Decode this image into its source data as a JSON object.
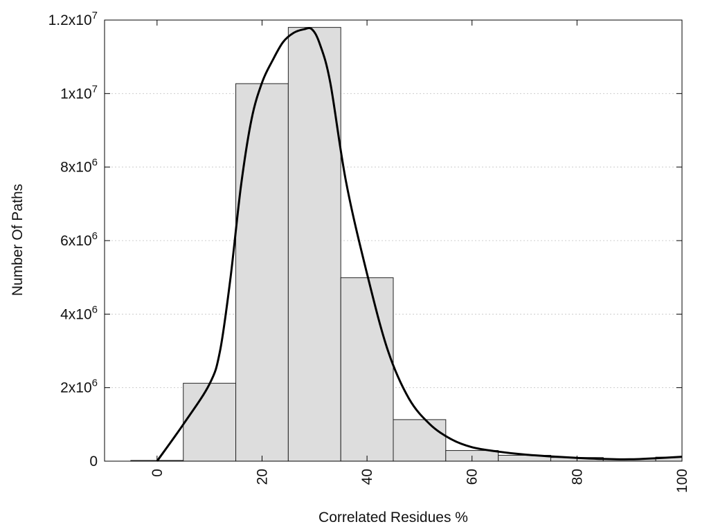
{
  "chart_data": {
    "type": "bar",
    "title": "",
    "xlabel": "Correlated Residues %",
    "ylabel": "Number Of Paths",
    "xlim": [
      -10,
      100
    ],
    "ylim": [
      0,
      12000000
    ],
    "x_ticks": [
      0,
      20,
      40,
      60,
      80,
      100
    ],
    "x_tick_labels": [
      "0",
      "20",
      "40",
      "60",
      "80",
      "100"
    ],
    "y_ticks": [
      0,
      2000000,
      4000000,
      6000000,
      8000000,
      10000000,
      12000000
    ],
    "y_tick_labels": [
      {
        "base": "0",
        "exp": ""
      },
      {
        "base": "2x10",
        "exp": "6"
      },
      {
        "base": "4x10",
        "exp": "6"
      },
      {
        "base": "6x10",
        "exp": "6"
      },
      {
        "base": "8x10",
        "exp": "6"
      },
      {
        "base": "1x10",
        "exp": "7"
      },
      {
        "base": "1.2x10",
        "exp": "7"
      }
    ],
    "bin_width": 10,
    "bin_centers": [
      0,
      10,
      20,
      30,
      40,
      50,
      60,
      70,
      80,
      90,
      100
    ],
    "values": [
      20000,
      2120000,
      10270000,
      11800000,
      4990000,
      1130000,
      290000,
      160000,
      100000,
      60000,
      110000
    ],
    "curve": {
      "x": [
        0,
        5,
        10,
        12,
        14,
        16,
        18,
        20,
        22,
        24,
        26,
        28,
        29.5,
        31,
        33,
        36,
        40,
        44,
        48,
        52,
        56,
        60,
        65,
        70,
        75,
        80,
        85,
        90,
        95,
        100
      ],
      "y": [
        0,
        1000000,
        2100000,
        3000000,
        5000000,
        7500000,
        9300000,
        10300000,
        10900000,
        11400000,
        11650000,
        11750000,
        11750000,
        11350000,
        10300000,
        7600000,
        5100000,
        3000000,
        1700000,
        1000000,
        600000,
        380000,
        260000,
        180000,
        130000,
        90000,
        60000,
        50000,
        80000,
        120000
      ]
    },
    "grid": true,
    "legend": "none",
    "colors": {
      "bar_fill": "#dddddd",
      "bar_stroke": "#222222",
      "curve": "#000000",
      "grid": "#cccccc"
    }
  }
}
